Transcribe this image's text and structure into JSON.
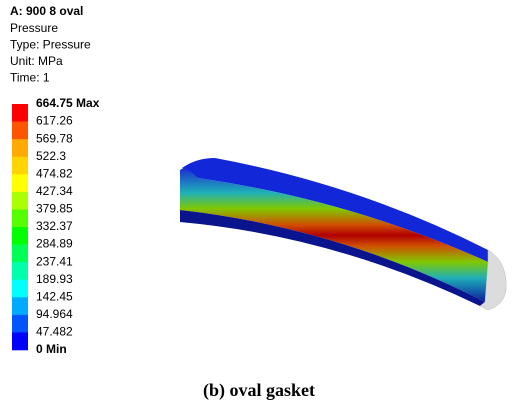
{
  "header": {
    "title": "A: 900 8 oval",
    "lines": [
      "Pressure",
      "Type: Pressure",
      "Unit: MPa",
      "Time: 1"
    ]
  },
  "legend": {
    "labels": [
      "664.75 Max",
      "617.26",
      "569.78",
      "522.3",
      "474.82",
      "427.34",
      "379.85",
      "332.37",
      "284.89",
      "237.41",
      "189.93",
      "142.45",
      "94.964",
      "47.482",
      "0 Min"
    ],
    "colors": [
      "#ff0000",
      "#ff5500",
      "#ffaa00",
      "#ffd400",
      "#ffff00",
      "#aaff00",
      "#55ff00",
      "#00ff00",
      "#00ff55",
      "#00ffaa",
      "#00ffff",
      "#00aaff",
      "#0055ff",
      "#0000ff"
    ]
  },
  "caption": "(b)  oval  gasket"
}
